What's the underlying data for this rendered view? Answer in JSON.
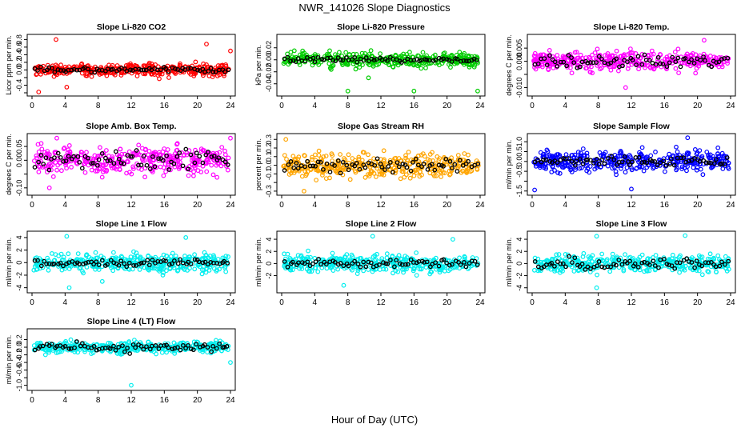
{
  "title": "NWR_141026  Slope Diagnostics",
  "xlabel": "Hour of Day (UTC)",
  "chart_data": [
    {
      "type": "scatter",
      "title": "Slope Li-820 CO2",
      "ylabel": "Licor ppm per min.",
      "color": "#ff0000",
      "xlim": [
        0,
        24
      ],
      "ylim": [
        -0.6,
        0.85
      ],
      "xticks": [
        0,
        4,
        8,
        12,
        16,
        20,
        24
      ],
      "yticks": [
        -0.6,
        -0.4,
        -0.2,
        0.0,
        0.2,
        0.4,
        0.6,
        0.8
      ],
      "ytick_labels": [
        "",
        "-0.4",
        "",
        "0.0",
        "0.2",
        "0.4",
        "0.6",
        "0.8"
      ],
      "center": 0.0,
      "spread": 0.11,
      "black_spread": 0.05,
      "outliers": [
        [
          2.9,
          0.8
        ],
        [
          21.1,
          0.68
        ],
        [
          24,
          0.5
        ],
        [
          0.8,
          -0.58
        ],
        [
          4.2,
          -0.45
        ]
      ]
    },
    {
      "type": "scatter",
      "title": "Slope Li-820 Pressure",
      "ylabel": "kPa per min.",
      "color": "#00cc00",
      "xlim": [
        0,
        24
      ],
      "ylim": [
        -0.055,
        0.037
      ],
      "xticks": [
        0,
        4,
        8,
        12,
        16,
        20,
        24
      ],
      "yticks": [
        -0.04,
        -0.02,
        0.0,
        0.02
      ],
      "ytick_labels": [
        "-0.04",
        "-0.02",
        "0.00",
        "0.02"
      ],
      "center": 0.0,
      "spread": 0.008,
      "black_spread": 0.003,
      "outliers": [
        [
          8,
          -0.052
        ],
        [
          16,
          -0.052
        ],
        [
          23.7,
          -0.052
        ],
        [
          10.5,
          -0.03
        ]
      ]
    },
    {
      "type": "scatter",
      "title": "Slope Li-820 Temp.",
      "ylabel": "degrees C per min.",
      "color": "#ff00ff",
      "xlim": [
        0,
        24
      ],
      "ylim": [
        -0.012,
        0.009
      ],
      "xticks": [
        0,
        4,
        8,
        12,
        16,
        20,
        24
      ],
      "yticks": [
        -0.01,
        -0.005,
        0.0,
        0.005
      ],
      "ytick_labels": [
        "-0.010",
        "",
        "0.000",
        "0.005"
      ],
      "center": 0.0,
      "spread": 0.0025,
      "black_spread": 0.0015,
      "outliers": [
        [
          20.8,
          0.008
        ],
        [
          11.3,
          -0.01
        ]
      ]
    },
    {
      "type": "scatter",
      "title": "Slope Amb. Box Temp.",
      "ylabel": "degrees C per min.",
      "color": "#ff00ff",
      "xlim": [
        0,
        24
      ],
      "ylim": [
        -0.115,
        0.085
      ],
      "xticks": [
        0,
        4,
        8,
        12,
        16,
        20,
        24
      ],
      "yticks": [
        -0.1,
        -0.05,
        0.0,
        0.05
      ],
      "ytick_labels": [
        "-0.10",
        "",
        "0.00",
        "0.05"
      ],
      "center": 0.0,
      "spread": 0.035,
      "black_spread": 0.025,
      "outliers": [
        [
          3,
          0.08
        ],
        [
          24,
          0.08
        ],
        [
          2.1,
          -0.1
        ]
      ]
    },
    {
      "type": "scatter",
      "title": "Slope Gas Stream RH",
      "ylabel": "percent per min.",
      "color": "#ffa500",
      "xlim": [
        0,
        24
      ],
      "ylim": [
        -0.31,
        0.33
      ],
      "xticks": [
        0,
        4,
        8,
        12,
        16,
        20,
        24
      ],
      "yticks": [
        -0.3,
        -0.2,
        -0.1,
        0.0,
        0.1,
        0.2,
        0.3
      ],
      "ytick_labels": [
        "-0.3",
        "",
        "-0.1",
        "0.0",
        "0.1",
        "0.2",
        "0.3"
      ],
      "center": 0.0,
      "spread": 0.09,
      "black_spread": 0.05,
      "outliers": [
        [
          2.7,
          -0.3
        ],
        [
          0.5,
          0.3
        ]
      ]
    },
    {
      "type": "scatter",
      "title": "Slope Sample Flow",
      "ylabel": "ml/min per min.",
      "color": "#0000ff",
      "xlim": [
        0,
        24
      ],
      "ylim": [
        -1.55,
        1.25
      ],
      "xticks": [
        0,
        4,
        8,
        12,
        16,
        20,
        24
      ],
      "yticks": [
        -1.5,
        -1.0,
        -0.5,
        0.0,
        0.5,
        1.0
      ],
      "ytick_labels": [
        "-1.5",
        "",
        "-0.5",
        "0.0",
        "0.5",
        "1.0"
      ],
      "center": 0.0,
      "spread": 0.38,
      "black_spread": 0.15,
      "outliers": [
        [
          0.3,
          -1.45
        ],
        [
          12,
          -1.4
        ],
        [
          18.8,
          1.2
        ]
      ]
    },
    {
      "type": "scatter",
      "title": "Slope Line 1 Flow",
      "ylabel": "ml/min per min.",
      "color": "#00eeee",
      "xlim": [
        0,
        24
      ],
      "ylim": [
        -4.3,
        4.5
      ],
      "xticks": [
        0,
        4,
        8,
        12,
        16,
        20,
        24
      ],
      "yticks": [
        -4,
        -2,
        0,
        2,
        4
      ],
      "ytick_labels": [
        "-4",
        "-2",
        "0",
        "2",
        "4"
      ],
      "center": 0.0,
      "spread": 1.0,
      "black_spread": 0.4,
      "outliers": [
        [
          4.5,
          -4.0
        ],
        [
          8.5,
          -3.0
        ],
        [
          18.6,
          4.0
        ],
        [
          4.2,
          4.2
        ]
      ]
    },
    {
      "type": "scatter",
      "title": "Slope Line 2 Flow",
      "ylabel": "ml/min per min.",
      "color": "#00eeee",
      "xlim": [
        0,
        24
      ],
      "ylim": [
        -4.3,
        4.8
      ],
      "xticks": [
        0,
        4,
        8,
        12,
        16,
        20,
        24
      ],
      "yticks": [
        -2,
        0,
        2,
        4
      ],
      "ytick_labels": [
        "-2",
        "0",
        "2",
        "4"
      ],
      "center": 0.0,
      "spread": 1.0,
      "black_spread": 0.5,
      "outliers": [
        [
          11,
          4.5
        ],
        [
          20.7,
          4.0
        ],
        [
          7.5,
          -3.6
        ]
      ]
    },
    {
      "type": "scatter",
      "title": "Slope Line 3 Flow",
      "ylabel": "ml/min per min.",
      "color": "#00eeee",
      "xlim": [
        0,
        24
      ],
      "ylim": [
        -4.3,
        4.8
      ],
      "xticks": [
        0,
        4,
        8,
        12,
        16,
        20,
        24
      ],
      "yticks": [
        -4,
        -2,
        0,
        2,
        4
      ],
      "ytick_labels": [
        "-4",
        "-2",
        "0",
        "2",
        "4"
      ],
      "center": 0.0,
      "spread": 1.0,
      "black_spread": 0.7,
      "outliers": [
        [
          7.8,
          4.5
        ],
        [
          18.5,
          4.6
        ],
        [
          7.8,
          -4.0
        ]
      ]
    },
    {
      "type": "scatter",
      "title": "Slope Line 4 (LT) Flow",
      "ylabel": "ml/min per min.",
      "color": "#00eeee",
      "xlim": [
        0,
        24
      ],
      "ylim": [
        -1.05,
        0.4
      ],
      "xticks": [
        0,
        4,
        8,
        12,
        16,
        20,
        24
      ],
      "yticks": [
        -1.0,
        -0.8,
        -0.6,
        -0.4,
        -0.2,
        0.0,
        0.2
      ],
      "ytick_labels": [
        "-1.0",
        "",
        "-0.6",
        "-0.4",
        "-0.2",
        "0.0",
        "0.2"
      ],
      "center": 0.0,
      "spread": 0.1,
      "black_spread": 0.08,
      "outliers": [
        [
          12,
          -1.0
        ],
        [
          24,
          -0.4
        ]
      ]
    }
  ]
}
